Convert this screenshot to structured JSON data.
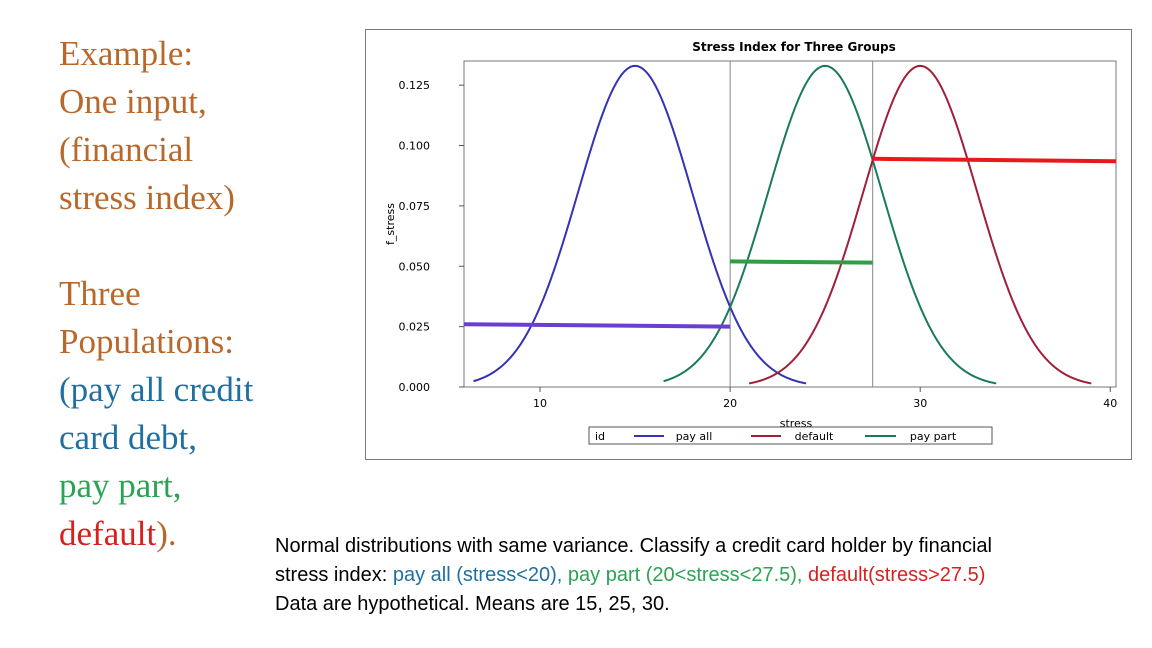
{
  "left_text": {
    "intro": [
      "Example:",
      "One input,",
      "(financial",
      "stress index)"
    ],
    "populations_heading": [
      "Three",
      "Populations:"
    ],
    "pop_open": "(pay all credit",
    "pop_open2": "card debt,",
    "pop_pay_part": "pay part,",
    "pop_default": "default",
    "pop_close": ")."
  },
  "caption": {
    "line1": "Normal distributions with same variance.  Classify a credit card holder by financial",
    "line2_prefix": "stress index: ",
    "line2_pay_all": "pay all (stress<20), ",
    "line2_pay_part": "pay part (20<stress<27.5), ",
    "line2_default": "default(stress>27.5)",
    "line3": "Data are hypothetical. Means are 15, 25, 30."
  },
  "colors": {
    "text_brown": "#b8682b",
    "text_blue": "#1f6fa0",
    "text_green": "#2aa352",
    "text_red": "#d8211f",
    "pay_all_curve": "#3333b3",
    "default_curve": "#a0203a",
    "pay_part_curve": "#1a7a5e",
    "pay_all_line": "#6a3fcf",
    "pay_part_line": "#2f9e44",
    "default_line": "#e8191c"
  },
  "chart_data": {
    "type": "line",
    "title": "Stress Index for Three Groups",
    "xlabel": "stress",
    "ylabel": "f_stress",
    "xlim": [
      6,
      40.3
    ],
    "ylim": [
      0,
      0.135
    ],
    "xticks": [
      10,
      20,
      30,
      40
    ],
    "yticks": [
      0.0,
      0.025,
      0.05,
      0.075,
      0.1,
      0.125
    ],
    "ytick_labels": [
      "0.000",
      "0.025",
      "0.050",
      "0.075",
      "0.100",
      "0.125"
    ],
    "vlines": [
      20,
      27.5
    ],
    "series": [
      {
        "name": "pay all",
        "mean": 15,
        "sd": 3,
        "xrange": [
          6.5,
          24
        ]
      },
      {
        "name": "pay part",
        "mean": 25,
        "sd": 3,
        "xrange": [
          16.5,
          34
        ]
      },
      {
        "name": "default",
        "mean": 30,
        "sd": 3,
        "xrange": [
          21,
          39
        ]
      }
    ],
    "threshold_lines": [
      {
        "name": "pay all",
        "x": [
          6,
          20
        ],
        "y": [
          0.026,
          0.025
        ]
      },
      {
        "name": "pay part",
        "x": [
          20,
          27.5
        ],
        "y": [
          0.052,
          0.0515
        ]
      },
      {
        "name": "default",
        "x": [
          27.5,
          40.3
        ],
        "y": [
          0.0945,
          0.0935
        ]
      }
    ],
    "legend": {
      "position": "bottom",
      "title": "id",
      "entries": [
        "pay all",
        "default",
        "pay part"
      ]
    }
  }
}
